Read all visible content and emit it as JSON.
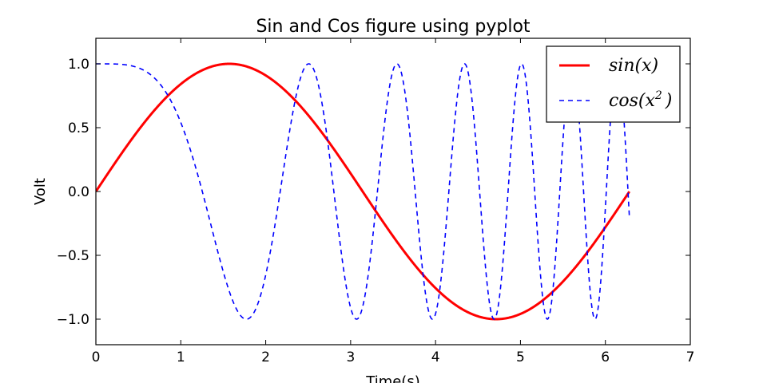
{
  "chart_data": {
    "type": "line",
    "title": "Sin and Cos figure using pyplot",
    "xlabel": "Time(s)",
    "ylabel": "Volt",
    "xlim": [
      0,
      7
    ],
    "ylim": [
      -1.2,
      1.2
    ],
    "xticks": [
      0,
      1,
      2,
      3,
      4,
      5,
      6,
      7
    ],
    "yticks": [
      -1.0,
      -0.5,
      0.0,
      0.5,
      1.0
    ],
    "xtick_labels": [
      "0",
      "1",
      "2",
      "3",
      "4",
      "5",
      "6",
      "7"
    ],
    "ytick_labels": [
      "−1.0",
      "−0.5",
      "0.0",
      "0.5",
      "1.0"
    ],
    "grid": false,
    "legend_position": "top-right",
    "series": [
      {
        "name": "sin(x)",
        "function": "sin(x)",
        "x_range": [
          0,
          6.283
        ],
        "color": "#ff0000",
        "style": "solid"
      },
      {
        "name": "cos(x^2)",
        "function": "cos(x^2)",
        "x_range": [
          0,
          6.283
        ],
        "color": "#0000ff",
        "style": "dashed"
      }
    ],
    "legend": {
      "entries": [
        {
          "base": "sin(x)",
          "sup": ""
        },
        {
          "base": "cos(x",
          "sup": "2",
          "tail": ")"
        }
      ]
    }
  }
}
